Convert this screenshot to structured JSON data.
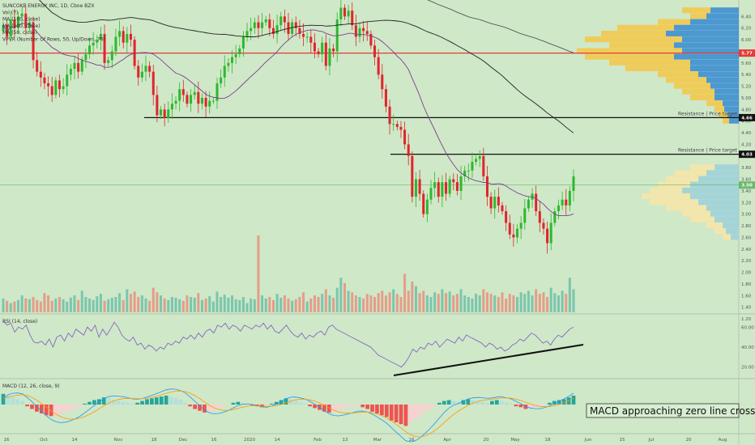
{
  "chart_data": {
    "type": "candlestick",
    "legend": [
      "SUNCOKE ENERGY INC, 1D, Cboe BZX",
      "Vol (7)",
      "MA (100, close)",
      "MA (200, close)",
      "MA (50, close)",
      "VPVR (Number Of Rows, 50, Up/Down, 70)"
    ],
    "price_axis": {
      "min": 1.2,
      "max": 6.6,
      "ticks": [
        "6.40",
        "6.20",
        "6.00",
        "5.80",
        "5.60",
        "5.40",
        "5.20",
        "5.00",
        "4.80",
        "4.60",
        "4.40",
        "4.20",
        "4.00",
        "3.80",
        "3.60",
        "3.40",
        "3.20",
        "3.00",
        "2.80",
        "2.60",
        "2.40",
        "2.20",
        "2.00",
        "1.80",
        "1.60",
        "1.40",
        "1.20"
      ]
    },
    "x_axis": {
      "ticks": [
        "16",
        "Oct",
        "14",
        "Nov",
        "18",
        "Dec",
        "16",
        "2020",
        "14",
        "Feb",
        "13",
        "Mar",
        "16",
        "Apr",
        "20",
        "May",
        "18",
        "Jun",
        "15",
        "Jul",
        "20",
        "Aug"
      ]
    },
    "price_tags": [
      {
        "value": "5.77",
        "color": "#e53935"
      },
      {
        "value": "4.66",
        "color": "#111111"
      },
      {
        "value": "4.03",
        "color": "#111111"
      },
      {
        "value": "3.50",
        "color": "#66bb6a"
      }
    ],
    "horizontal_lines": [
      {
        "price": 5.77,
        "color": "#e53935",
        "label": ""
      },
      {
        "price": 4.66,
        "color": "#111111",
        "label": "Resistance | Price target"
      },
      {
        "price": 4.03,
        "color": "#111111",
        "label": "Resistance | Price target"
      }
    ],
    "close": [
      6.25,
      6.05,
      6.35,
      6.2,
      6.4,
      6.45,
      6.2,
      6.3,
      5.65,
      5.45,
      5.35,
      5.25,
      5.2,
      5.05,
      5.3,
      5.15,
      5.2,
      5.4,
      5.5,
      5.6,
      5.45,
      5.65,
      5.75,
      5.9,
      5.95,
      6.0,
      6.1,
      5.6,
      5.65,
      5.8,
      6.05,
      6.15,
      5.95,
      6.1,
      6.0,
      5.55,
      5.35,
      5.45,
      5.55,
      5.45,
      5.05,
      4.7,
      4.8,
      4.65,
      4.8,
      4.9,
      4.95,
      5.15,
      5.05,
      4.9,
      5.05,
      5.1,
      4.9,
      5.0,
      4.85,
      4.95,
      4.95,
      5.25,
      5.35,
      5.55,
      5.6,
      5.7,
      5.75,
      5.85,
      6.05,
      6.15,
      6.2,
      6.3,
      6.2,
      6.3,
      6.35,
      6.2,
      6.1,
      6.25,
      6.4,
      6.3,
      6.1,
      6.3,
      6.2,
      6.1,
      6.05,
      6.05,
      5.95,
      5.8,
      5.75,
      5.95,
      5.55,
      5.85,
      5.8,
      6.35,
      6.55,
      6.4,
      6.5,
      6.25,
      6.05,
      6.2,
      6.15,
      6.1,
      5.9,
      5.7,
      5.4,
      5.15,
      4.85,
      4.55,
      4.55,
      4.5,
      4.45,
      4.2,
      4.0,
      3.3,
      3.6,
      3.35,
      3.0,
      3.25,
      3.45,
      3.55,
      3.3,
      3.55,
      3.35,
      3.6,
      3.55,
      3.4,
      3.65,
      3.75,
      3.75,
      3.9,
      3.95,
      4.0,
      3.65,
      3.3,
      3.1,
      3.3,
      3.15,
      3.05,
      2.85,
      2.65,
      2.6,
      2.75,
      2.85,
      3.1,
      3.25,
      3.35,
      3.05,
      2.85,
      2.75,
      2.5,
      2.85,
      3.05,
      3.15,
      3.25,
      3.15,
      3.4,
      3.65
    ],
    "volume_scale_max": 1.0,
    "volume": [
      0.18,
      0.15,
      0.12,
      0.14,
      0.16,
      0.22,
      0.18,
      0.17,
      0.2,
      0.16,
      0.14,
      0.25,
      0.22,
      0.15,
      0.18,
      0.2,
      0.17,
      0.14,
      0.19,
      0.22,
      0.16,
      0.28,
      0.2,
      0.18,
      0.16,
      0.21,
      0.24,
      0.15,
      0.17,
      0.19,
      0.2,
      0.25,
      0.16,
      0.3,
      0.24,
      0.27,
      0.2,
      0.22,
      0.18,
      0.15,
      0.32,
      0.26,
      0.22,
      0.18,
      0.16,
      0.2,
      0.19,
      0.17,
      0.15,
      0.22,
      0.2,
      0.19,
      0.25,
      0.16,
      0.18,
      0.21,
      0.14,
      0.27,
      0.2,
      0.23,
      0.19,
      0.22,
      0.17,
      0.16,
      0.2,
      0.12,
      0.18,
      0.17,
      1.0,
      0.22,
      0.18,
      0.2,
      0.16,
      0.24,
      0.19,
      0.22,
      0.18,
      0.15,
      0.17,
      0.2,
      0.26,
      0.14,
      0.18,
      0.22,
      0.2,
      0.24,
      0.3,
      0.22,
      0.19,
      0.32,
      0.45,
      0.38,
      0.28,
      0.26,
      0.22,
      0.2,
      0.18,
      0.24,
      0.22,
      0.2,
      0.25,
      0.28,
      0.22,
      0.26,
      0.3,
      0.24,
      0.2,
      0.5,
      0.28,
      0.4,
      0.34,
      0.25,
      0.28,
      0.22,
      0.2,
      0.26,
      0.24,
      0.3,
      0.25,
      0.27,
      0.22,
      0.24,
      0.3,
      0.22,
      0.2,
      0.18,
      0.24,
      0.22,
      0.3,
      0.26,
      0.24,
      0.22,
      0.2,
      0.26,
      0.18,
      0.24,
      0.22,
      0.2,
      0.26,
      0.24,
      0.28,
      0.22,
      0.3,
      0.24,
      0.26,
      0.2,
      0.32,
      0.25,
      0.22,
      0.28,
      0.24,
      0.45,
      0.3
    ],
    "rsi": {
      "label": "RSI (14, close)",
      "ticks": [
        "60.00",
        "40.00",
        "20.00"
      ],
      "values": [
        66,
        62,
        64,
        55,
        60,
        58,
        62,
        52,
        45,
        44,
        46,
        42,
        48,
        40,
        50,
        52,
        46,
        54,
        50,
        58,
        55,
        52,
        60,
        56,
        62,
        50,
        58,
        52,
        58,
        65,
        60,
        52,
        48,
        46,
        50,
        42,
        44,
        38,
        42,
        40,
        36,
        40,
        38,
        44,
        42,
        46,
        44,
        50,
        48,
        52,
        48,
        54,
        50,
        56,
        58,
        54,
        62,
        60,
        64,
        58,
        62,
        60,
        56,
        62,
        60,
        58,
        62,
        60,
        64,
        58,
        62,
        56,
        54,
        58,
        62,
        56,
        52,
        50,
        54,
        48,
        52,
        50,
        54,
        56,
        52,
        60,
        62,
        58,
        56,
        54,
        52,
        50,
        48,
        46,
        44,
        42,
        40,
        36,
        32,
        30,
        28,
        26,
        24,
        22,
        20,
        24,
        30,
        38,
        35,
        40,
        38,
        44,
        42,
        46,
        40,
        44,
        48,
        46,
        44,
        50,
        46,
        52,
        50,
        48,
        46,
        44,
        40,
        44,
        42,
        38,
        40,
        36,
        38,
        42,
        44,
        48,
        46,
        50,
        54,
        52,
        48,
        44,
        46,
        42,
        48,
        52,
        50,
        54,
        58,
        60
      ],
      "trendline_label": ""
    },
    "macd": {
      "label": "MACD (12, 26, close, 9)",
      "histogram": [
        0.12,
        0.1,
        0.08,
        0.06,
        0.04,
        -0.02,
        -0.05,
        -0.08,
        -0.1,
        -0.12,
        -0.13,
        -0.12,
        -0.1,
        -0.08,
        -0.06,
        -0.04,
        -0.02,
        0.01,
        0.03,
        0.05,
        0.06,
        0.08,
        0.07,
        0.05,
        0.04,
        0.03,
        0.02,
        0.01,
        0.02,
        0.04,
        0.06,
        0.07,
        0.08,
        0.09,
        0.1,
        0.09,
        0.07,
        0.05,
        0.02,
        -0.02,
        -0.05,
        -0.07,
        -0.09,
        -0.08,
        -0.06,
        -0.04,
        -0.02,
        0.0,
        0.02,
        0.03,
        0.02,
        0.01,
        -0.01,
        -0.02,
        -0.03,
        -0.02,
        0.01,
        0.03,
        0.05,
        0.07,
        0.06,
        0.04,
        0.02,
        0.01,
        -0.02,
        -0.04,
        -0.06,
        -0.08,
        -0.09,
        -0.08,
        -0.06,
        -0.04,
        -0.03,
        -0.02,
        -0.01,
        -0.03,
        -0.05,
        -0.08,
        -0.1,
        -0.12,
        -0.14,
        -0.18,
        -0.2,
        -0.22,
        -0.24,
        -0.2,
        -0.16,
        -0.12,
        -0.08,
        -0.05,
        -0.02,
        0.02,
        0.04,
        0.05,
        0.04,
        0.03,
        0.05,
        0.06,
        0.05,
        0.04,
        0.03,
        0.02,
        0.04,
        0.05,
        0.04,
        0.02,
        0.01,
        -0.02,
        -0.03,
        -0.05,
        -0.04,
        -0.03,
        -0.02,
        0.0,
        0.02,
        0.04,
        0.05,
        0.06,
        0.08,
        0.1
      ],
      "callout": "MACD approaching zero line crossing"
    },
    "price_marker": {
      "value": "3.50"
    }
  }
}
